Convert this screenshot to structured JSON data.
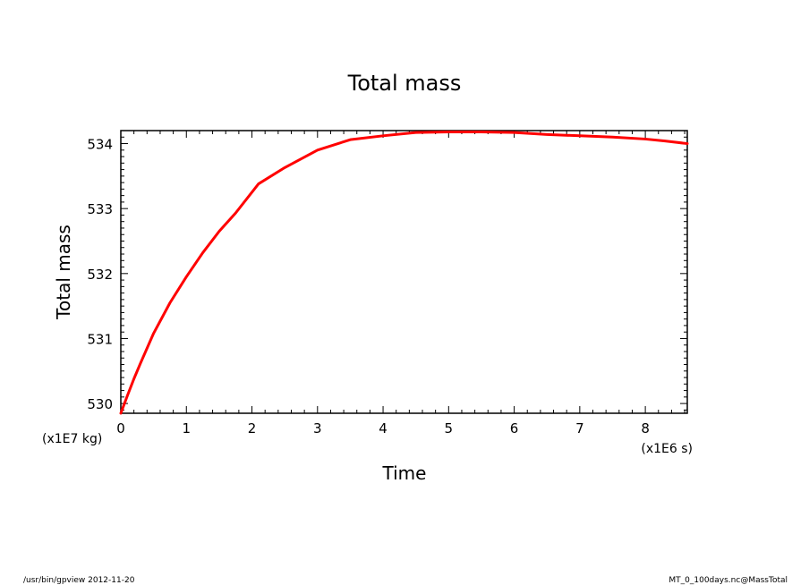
{
  "chart_data": {
    "type": "line",
    "title": "Total mass",
    "xlabel": "Time",
    "ylabel": "Total mass",
    "x_unit": "(x1E6 s)",
    "y_unit": "(x1E7 kg)",
    "xlim": [
      0,
      8.64
    ],
    "ylim": [
      529.85,
      534.2
    ],
    "x_ticks": [
      0,
      1,
      2,
      3,
      4,
      5,
      6,
      7,
      8
    ],
    "y_ticks": [
      530,
      531,
      532,
      533,
      534
    ],
    "grid": false,
    "legend": "none",
    "series": [
      {
        "color": "#ff0000",
        "x": [
          0,
          0.1,
          0.2,
          0.3,
          0.5,
          0.75,
          1.0,
          1.25,
          1.5,
          1.75,
          2.1,
          2.5,
          3.0,
          3.5,
          4.0,
          4.5,
          5.0,
          5.5,
          6.0,
          6.5,
          7.0,
          7.5,
          8.0,
          8.3,
          8.64
        ],
        "y": [
          529.85,
          530.12,
          530.38,
          530.62,
          531.08,
          531.55,
          531.95,
          532.32,
          532.65,
          532.93,
          533.38,
          533.63,
          533.9,
          534.06,
          534.12,
          534.17,
          534.18,
          534.18,
          534.17,
          534.14,
          534.12,
          534.1,
          534.07,
          534.04,
          534.0
        ]
      }
    ]
  },
  "footer": {
    "left": "/usr/bin/gpview  2012-11-20",
    "right": "MT_0_100days.nc@MassTotal"
  }
}
